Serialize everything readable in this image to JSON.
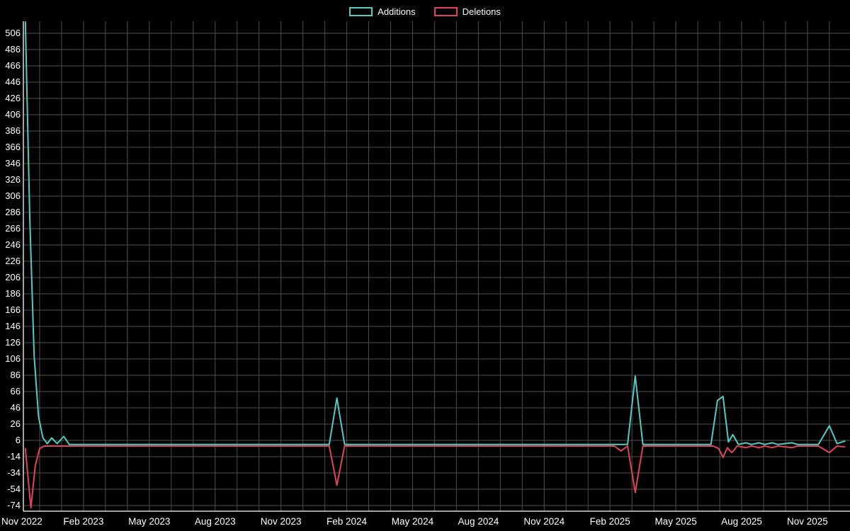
{
  "legend": {
    "items": [
      {
        "label": "Additions",
        "color": "#4ecdc4"
      },
      {
        "label": "Deletions",
        "color": "#e2435c"
      }
    ]
  },
  "chart_data": {
    "type": "line",
    "title": "",
    "xlabel": "",
    "ylabel": "",
    "legend_position": "top-center",
    "background_color": "#000000",
    "grid_color": "#4f4f4f",
    "axis_color": "#d9d9d9",
    "text_color": "#ffffff",
    "grid": true,
    "y_axis": {
      "min": -74,
      "max": 506,
      "tick_step": 20,
      "ticks": [
        506,
        486,
        466,
        446,
        426,
        406,
        386,
        366,
        346,
        326,
        306,
        286,
        266,
        246,
        226,
        206,
        186,
        166,
        146,
        126,
        106,
        86,
        66,
        46,
        26,
        6,
        -14,
        -34,
        -54,
        -74
      ]
    },
    "x_axis": {
      "unit": "months-since-nov-2022",
      "range_months": [
        0,
        37.8
      ],
      "gridline_every_months": 1,
      "tick_months": [
        0,
        3,
        6,
        9,
        12,
        15,
        18,
        21,
        24,
        27,
        30,
        33,
        36
      ],
      "tick_labels": [
        "Nov 2022",
        "Feb 2023",
        "May 2023",
        "Aug 2023",
        "Nov 2023",
        "Feb 2024",
        "May 2024",
        "Aug 2024",
        "Nov 2024",
        "Feb 2025",
        "May 2025",
        "Aug 2025",
        "Nov 2025"
      ]
    },
    "series": [
      {
        "name": "Additions",
        "color": "#4ecdc4",
        "points": [
          [
            0.35,
            520
          ],
          [
            0.55,
            280
          ],
          [
            0.75,
            110
          ],
          [
            0.95,
            35
          ],
          [
            1.15,
            9
          ],
          [
            1.35,
            2
          ],
          [
            1.55,
            9
          ],
          [
            1.8,
            2
          ],
          [
            2.1,
            11
          ],
          [
            2.35,
            1
          ],
          [
            3,
            1
          ],
          [
            14.2,
            1
          ],
          [
            14.55,
            58
          ],
          [
            14.9,
            1
          ],
          [
            27.8,
            1
          ],
          [
            28.15,
            85
          ],
          [
            28.5,
            1
          ],
          [
            31.6,
            1
          ],
          [
            31.9,
            55
          ],
          [
            32.15,
            60
          ],
          [
            32.4,
            4
          ],
          [
            32.6,
            13
          ],
          [
            32.85,
            1
          ],
          [
            33.2,
            3
          ],
          [
            33.45,
            1
          ],
          [
            33.8,
            3
          ],
          [
            34.05,
            1
          ],
          [
            34.4,
            3
          ],
          [
            34.65,
            1
          ],
          [
            35.3,
            3
          ],
          [
            35.55,
            1
          ],
          [
            36.5,
            1
          ],
          [
            37.0,
            24
          ],
          [
            37.35,
            2
          ],
          [
            37.7,
            5
          ]
        ]
      },
      {
        "name": "Deletions",
        "color": "#e2435c",
        "points": [
          [
            0.35,
            -4
          ],
          [
            0.6,
            -77
          ],
          [
            0.8,
            -25
          ],
          [
            1.0,
            -4
          ],
          [
            1.2,
            -1
          ],
          [
            3,
            -1
          ],
          [
            14.2,
            -1
          ],
          [
            14.55,
            -49
          ],
          [
            14.9,
            -1
          ],
          [
            27.2,
            -1
          ],
          [
            27.5,
            -7
          ],
          [
            27.8,
            -1
          ],
          [
            28.15,
            -58
          ],
          [
            28.5,
            -1
          ],
          [
            31.7,
            -1
          ],
          [
            31.95,
            -4
          ],
          [
            32.15,
            -15
          ],
          [
            32.35,
            -3
          ],
          [
            32.55,
            -9
          ],
          [
            32.8,
            -1
          ],
          [
            33.2,
            -3
          ],
          [
            33.45,
            -1
          ],
          [
            33.8,
            -3
          ],
          [
            34.05,
            -1
          ],
          [
            34.4,
            -3
          ],
          [
            34.65,
            -1
          ],
          [
            35.3,
            -3
          ],
          [
            35.55,
            -1
          ],
          [
            36.5,
            -1
          ],
          [
            37.0,
            -9
          ],
          [
            37.35,
            -1
          ],
          [
            37.7,
            -2
          ]
        ]
      }
    ]
  }
}
